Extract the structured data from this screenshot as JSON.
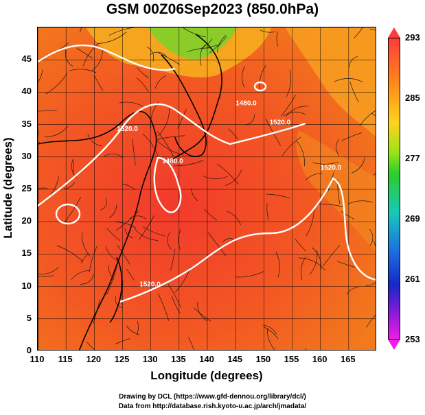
{
  "title": "GSM 00Z06Sep2023 (850.0hPa)",
  "map": {
    "lon_range": [
      110,
      170
    ],
    "lat_range": [
      0,
      50
    ],
    "grid": true,
    "x_ticks": [
      "110",
      "115",
      "120",
      "125",
      "130",
      "135",
      "140",
      "145",
      "150",
      "155",
      "160",
      "165"
    ],
    "y_ticks": [
      "45",
      "40",
      "35",
      "30",
      "25",
      "20",
      "15",
      "10",
      "5",
      "0"
    ],
    "xlabel": "Longitude (degrees)",
    "ylabel": "Latitude  (degrees)",
    "contour_labels": [
      {
        "text": "1520.0",
        "lon": 124,
        "lat": 34
      },
      {
        "text": "1480.0",
        "lon": 145,
        "lat": 38
      },
      {
        "text": "1520.0",
        "lon": 151,
        "lat": 35
      },
      {
        "text": "1480.0",
        "lon": 132,
        "lat": 29
      },
      {
        "text": "1520.0",
        "lon": 160,
        "lat": 28
      },
      {
        "text": "1520.0",
        "lon": 128,
        "lat": 10
      }
    ]
  },
  "colorbar": {
    "ticks": [
      "293",
      "285",
      "277",
      "269",
      "261",
      "253"
    ],
    "colors": [
      "#ff3b3b",
      "#ff8a1a",
      "#ffd21e",
      "#2ccd2a",
      "#16c9b8",
      "#1e73e0",
      "#1428c8",
      "#ee1ee6"
    ]
  },
  "credits": {
    "line1": "Drawing by DCL (https://www.gfd-dennou.org/library/dcl/)",
    "line2": "Data from http://database.rish.kyoto-u.ac.jp/arch/jmadata/"
  }
}
